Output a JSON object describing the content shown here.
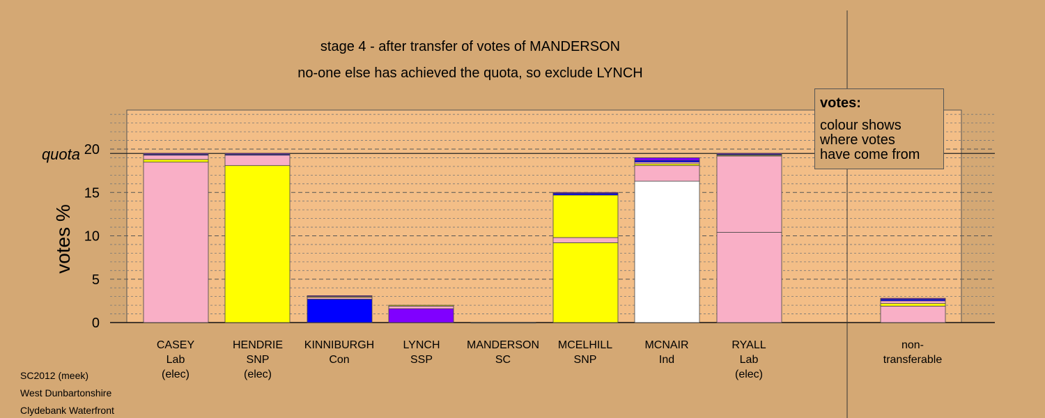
{
  "chart_data": {
    "type": "bar",
    "stacked": true,
    "title": "stage 4 - after transfer of votes of MANDERSON",
    "subtitle": "no-one else has achieved the quota, so exclude LYNCH",
    "ylabel": "votes %",
    "ylim": [
      0,
      25
    ],
    "yticks": [
      0,
      5,
      10,
      15,
      20
    ],
    "quota": 19.5,
    "quota_label": "quota",
    "grid": true,
    "categories": [
      [
        "CASEY",
        "Lab",
        "(elec)"
      ],
      [
        "HENDRIE",
        "SNP",
        "(elec)"
      ],
      [
        "KINNIBURGH",
        "Con"
      ],
      [
        "LYNCH",
        "SSP"
      ],
      [
        "MANDERSON",
        "SC"
      ],
      [
        "MCELHILL",
        "SNP"
      ],
      [
        "MCNAIR",
        "Ind"
      ],
      [
        "RYALL",
        "Lab",
        "(elec)"
      ],
      [
        "non-",
        "transferable"
      ]
    ],
    "bars": [
      [
        {
          "value": 18.5,
          "color": "#f9afc6"
        },
        {
          "value": 0.3,
          "color": "#ffff00"
        },
        {
          "value": 0.5,
          "color": "#f9afc6"
        },
        {
          "value": 0.1,
          "color": "#0000ff"
        },
        {
          "value": 0.1,
          "color": "#8000ff"
        }
      ],
      [
        {
          "value": 18.1,
          "color": "#ffff00"
        },
        {
          "value": 1.2,
          "color": "#f9afc6"
        },
        {
          "value": 0.1,
          "color": "#0000ff"
        },
        {
          "value": 0.1,
          "color": "#8000ff"
        }
      ],
      [
        {
          "value": 2.7,
          "color": "#0000ff"
        },
        {
          "value": 0.2,
          "color": "#f9afc6"
        },
        {
          "value": 0.1,
          "color": "#ffff00"
        },
        {
          "value": 0.1,
          "color": "#8000ff"
        }
      ],
      [
        {
          "value": 1.6,
          "color": "#8000ff"
        },
        {
          "value": 0.3,
          "color": "#f9afc6"
        },
        {
          "value": 0.1,
          "color": "#ffff00"
        }
      ],
      [
        {
          "value": 0.0,
          "color": "#ffffff"
        }
      ],
      [
        {
          "value": 9.2,
          "color": "#ffff00"
        },
        {
          "value": 0.6,
          "color": "#f9afc6"
        },
        {
          "value": 4.9,
          "color": "#ffff00"
        },
        {
          "value": 0.2,
          "color": "#0000ff"
        },
        {
          "value": 0.1,
          "color": "#8000ff"
        }
      ],
      [
        {
          "value": 16.3,
          "color": "#ffffff"
        },
        {
          "value": 1.8,
          "color": "#f9afc6"
        },
        {
          "value": 0.2,
          "color": "#ffff00"
        },
        {
          "value": 0.2,
          "color": "#f9afc6"
        },
        {
          "value": 0.2,
          "color": "#0000ff"
        },
        {
          "value": 0.3,
          "color": "#8000ff"
        }
      ],
      [
        {
          "value": 10.4,
          "color": "#f9afc6"
        },
        {
          "value": 8.8,
          "color": "#f9afc6"
        },
        {
          "value": 0.1,
          "color": "#ffff00"
        },
        {
          "value": 0.1,
          "color": "#0000ff"
        },
        {
          "value": 0.1,
          "color": "#8000ff"
        }
      ],
      [
        {
          "value": 1.9,
          "color": "#f9afc6"
        },
        {
          "value": 0.3,
          "color": "#ffff00"
        },
        {
          "value": 0.3,
          "color": "#f9afc6"
        },
        {
          "value": 0.2,
          "color": "#0000ff"
        },
        {
          "value": 0.1,
          "color": "#8000ff"
        }
      ]
    ]
  },
  "legend": {
    "title": "votes:",
    "text": "colour shows\nwhere votes\nhave come from"
  },
  "footer": {
    "line1": "SC2012 (meek)",
    "line2": "West Dunbartonshire",
    "line3": "Clydebank Waterfront"
  },
  "colors": {
    "background": "#d4a874",
    "plot_area": "#f3be87",
    "pink": "#f9afc6",
    "yellow": "#ffff00",
    "blue": "#0000ff",
    "purple": "#8000ff",
    "white": "#ffffff"
  }
}
